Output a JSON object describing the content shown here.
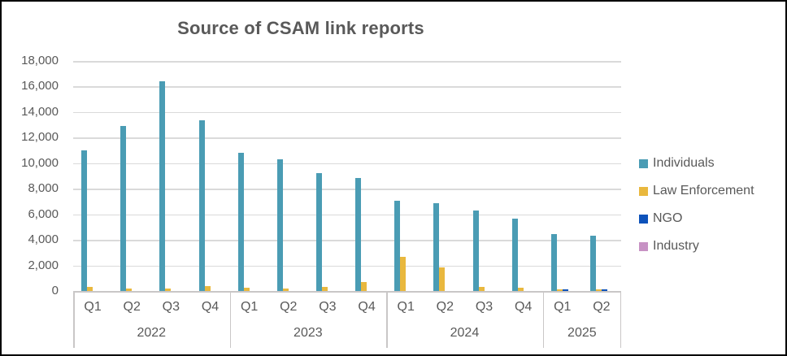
{
  "chart_data": {
    "type": "bar",
    "title": "Source of CSAM link reports",
    "ylim": [
      0,
      18000
    ],
    "ytick_step": 2000,
    "y_tick_labels": [
      "18,000",
      "16,000",
      "14,000",
      "12,000",
      "10,000",
      "8,000",
      "6,000",
      "4,000",
      "2,000",
      "0"
    ],
    "grid": true,
    "legend_position": "right",
    "year_groups": [
      {
        "year": "2022",
        "quarters": [
          "Q1",
          "Q2",
          "Q3",
          "Q4"
        ]
      },
      {
        "year": "2023",
        "quarters": [
          "Q1",
          "Q2",
          "Q3",
          "Q4"
        ]
      },
      {
        "year": "2024",
        "quarters": [
          "Q1",
          "Q2",
          "Q3",
          "Q4"
        ]
      },
      {
        "year": "2025",
        "quarters": [
          "Q1",
          "Q2"
        ]
      }
    ],
    "categories": [
      "2022 Q1",
      "2022 Q2",
      "2022 Q3",
      "2022 Q4",
      "2023 Q1",
      "2023 Q2",
      "2023 Q3",
      "2023 Q4",
      "2024 Q1",
      "2024 Q2",
      "2024 Q3",
      "2024 Q4",
      "2025 Q1",
      "2025 Q2"
    ],
    "series": [
      {
        "name": "Individuals",
        "color": "#4A9CB4",
        "values": [
          11000,
          12900,
          16400,
          13350,
          10800,
          10300,
          9250,
          8850,
          7050,
          6850,
          6300,
          5650,
          4450,
          4300
        ]
      },
      {
        "name": "Law Enforcement",
        "color": "#E9B83E",
        "values": [
          300,
          220,
          200,
          350,
          250,
          220,
          300,
          700,
          2650,
          1850,
          300,
          260,
          150,
          150
        ]
      },
      {
        "name": "NGO",
        "color": "#0D52BA",
        "values": [
          0,
          0,
          0,
          0,
          0,
          0,
          0,
          0,
          0,
          0,
          0,
          0,
          100,
          100
        ]
      },
      {
        "name": "Industry",
        "color": "#C792C4",
        "values": [
          0,
          0,
          0,
          0,
          0,
          0,
          0,
          0,
          0,
          0,
          0,
          0,
          0,
          0
        ]
      }
    ],
    "colors": {
      "title_text": "#595959",
      "axis_text": "#595959",
      "gridline": "#dadada",
      "axis_line": "#c9c7c7",
      "background": "#ffffff",
      "frame_border": "#000000"
    }
  }
}
